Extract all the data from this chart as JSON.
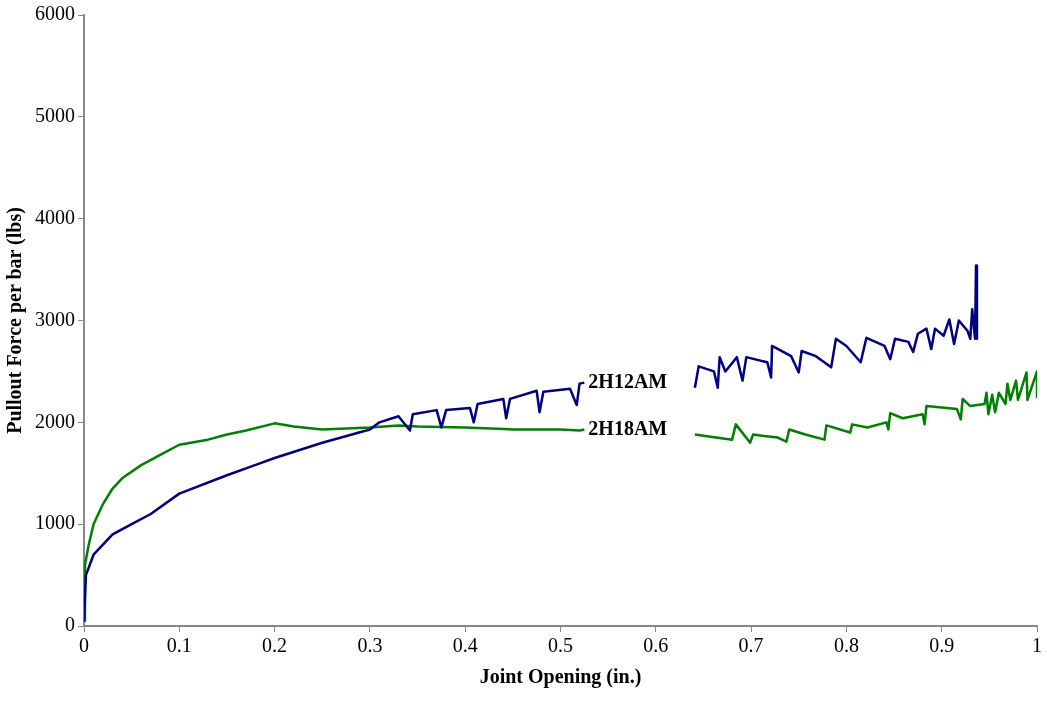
{
  "chart_data": {
    "type": "line",
    "xlabel": "Joint Opening (in.)",
    "ylabel": "Pullout Force per bar (lbs)",
    "xlim": [
      0,
      1
    ],
    "ylim": [
      0,
      6000
    ],
    "xticks": [
      0,
      0.1,
      0.2,
      0.3,
      0.4,
      0.5,
      0.6,
      0.7,
      0.8,
      0.9,
      1
    ],
    "yticks": [
      0,
      1000,
      2000,
      3000,
      4000,
      5000,
      6000
    ],
    "grid": false,
    "legend": false,
    "marker": "none",
    "line_style": "solid",
    "series": [
      {
        "name": "2H12AM",
        "color": "#000080",
        "x": [
          0,
          0.002,
          0.01,
          0.03,
          0.05,
          0.07,
          0.1,
          0.15,
          0.2,
          0.25,
          0.3,
          0.31,
          0.33,
          0.342,
          0.345,
          0.37,
          0.375,
          0.38,
          0.405,
          0.409,
          0.413,
          0.44,
          0.443,
          0.447,
          0.475,
          0.478,
          0.482,
          0.51,
          0.517,
          0.52,
          0.525,
          0.58,
          0.641,
          0.645,
          0.661,
          0.665,
          0.667,
          0.673,
          0.685,
          0.691,
          0.695,
          0.717,
          0.721,
          0.722,
          0.742,
          0.75,
          0.753,
          0.768,
          0.784,
          0.789,
          0.8,
          0.815,
          0.821,
          0.84,
          0.846,
          0.851,
          0.865,
          0.87,
          0.875,
          0.884,
          0.889,
          0.893,
          0.902,
          0.908,
          0.913,
          0.918,
          0.927,
          0.93,
          0.932,
          0.935,
          0.936,
          0.937
        ],
        "values": [
          50,
          500,
          700,
          900,
          1000,
          1100,
          1300,
          1480,
          1650,
          1800,
          1930,
          2000,
          2060,
          1920,
          2080,
          2120,
          1950,
          2120,
          2140,
          2000,
          2180,
          2230,
          2040,
          2230,
          2310,
          2100,
          2300,
          2330,
          2170,
          2380,
          2390,
          null,
          2340,
          2550,
          2500,
          2340,
          2640,
          2500,
          2640,
          2410,
          2640,
          2590,
          2440,
          2750,
          2650,
          2490,
          2700,
          2650,
          2540,
          2820,
          2750,
          2590,
          2830,
          2750,
          2620,
          2820,
          2790,
          2690,
          2870,
          2920,
          2720,
          2920,
          2850,
          3010,
          2770,
          3000,
          2900,
          2820,
          3110,
          2820,
          3540,
          2820
        ]
      },
      {
        "name": "2H18AM",
        "color": "#008000",
        "x": [
          0,
          0.001,
          0.005,
          0.01,
          0.02,
          0.03,
          0.04,
          0.06,
          0.08,
          0.1,
          0.13,
          0.15,
          0.17,
          0.2,
          0.22,
          0.25,
          0.3,
          0.33,
          0.35,
          0.4,
          0.45,
          0.5,
          0.52,
          0.525,
          0.58,
          0.641,
          0.68,
          0.684,
          0.699,
          0.702,
          0.728,
          0.737,
          0.74,
          0.757,
          0.777,
          0.779,
          0.804,
          0.806,
          0.822,
          0.842,
          0.844,
          0.846,
          0.859,
          0.88,
          0.882,
          0.884,
          0.916,
          0.92,
          0.922,
          0.93,
          0.945,
          0.947,
          0.949,
          0.953,
          0.956,
          0.96,
          0.967,
          0.969,
          0.972,
          0.978,
          0.98,
          0.989,
          0.99,
          1,
          1
        ],
        "values": [
          50,
          600,
          800,
          1000,
          1200,
          1350,
          1450,
          1580,
          1680,
          1780,
          1830,
          1880,
          1920,
          1990,
          1960,
          1930,
          1950,
          1970,
          1960,
          1950,
          1930,
          1930,
          1920,
          1930,
          null,
          1880,
          1830,
          1980,
          1800,
          1880,
          1850,
          1810,
          1930,
          1880,
          1830,
          1970,
          1900,
          1980,
          1950,
          2000,
          1930,
          2090,
          2040,
          2080,
          1980,
          2160,
          2130,
          2030,
          2230,
          2160,
          2180,
          2290,
          2080,
          2270,
          2100,
          2290,
          2180,
          2380,
          2220,
          2410,
          2220,
          2490,
          2220,
          2500,
          2250
        ]
      }
    ]
  }
}
